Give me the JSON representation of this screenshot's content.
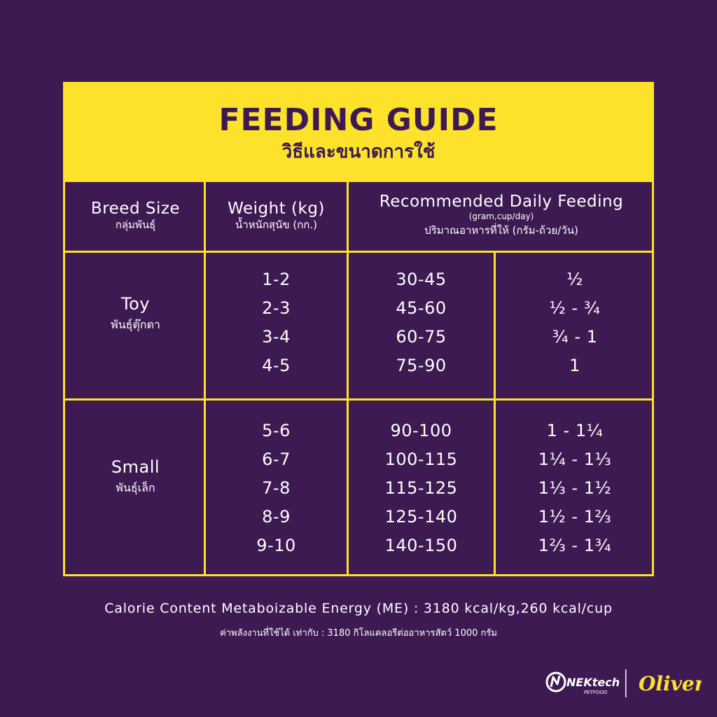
{
  "header": {
    "title": "FEEDING GUIDE",
    "subtitle": "วิธีและขนาดการใช้"
  },
  "columns": {
    "breed": {
      "label": "Breed Size",
      "thai": "กลุ่มพันธุ์"
    },
    "weight": {
      "label": "Weight (kg)",
      "thai": "น้ำหนักสุนัข (กก.)"
    },
    "feeding": {
      "label": "Recommended Daily Feeding",
      "unit": "(gram,cup/day)",
      "thai": "ปริมาณอาหารที่ให้ (กรัม-ถ้วย/วัน)"
    }
  },
  "groups": [
    {
      "name": "Toy",
      "thai": "พันธุ์ตุ๊กตา",
      "weights": [
        "1-2",
        "2-3",
        "3-4",
        "4-5"
      ],
      "grams": [
        "30-45",
        "45-60",
        "60-75",
        "75-90"
      ],
      "cups": [
        "½",
        "½ - ¾",
        "¾ - 1",
        "1"
      ]
    },
    {
      "name": "Small",
      "thai": "พันธุ์เล็ก",
      "weights": [
        "5-6",
        "6-7",
        "7-8",
        "8-9",
        "9-10"
      ],
      "grams": [
        "90-100",
        "100-115",
        "115-125",
        "125-140",
        "140-150"
      ],
      "cups": [
        "1 - 1¼",
        "1¼ - 1⅓",
        "1⅓ - 1½",
        "1½ - 1⅔",
        "1⅔ - 1¾"
      ]
    }
  ],
  "footer": {
    "energy": "Calorie Content Metaboizable Energy (ME) : 3180 kcal/kg,260 kcal/cup",
    "energy_thai": "ค่าพลังงานที่ใช้ได้ เท่ากับ : 3180 กิโลแคลอรีต่ออาหารสัตว์ 1000 กรัม"
  },
  "logos": {
    "brand1": "NEKtech",
    "brand1_sub": "PETFOOD",
    "brand2": "Oliver"
  },
  "colors": {
    "background": "#3d1a52",
    "accent": "#fce22a",
    "text": "#ffffff"
  }
}
